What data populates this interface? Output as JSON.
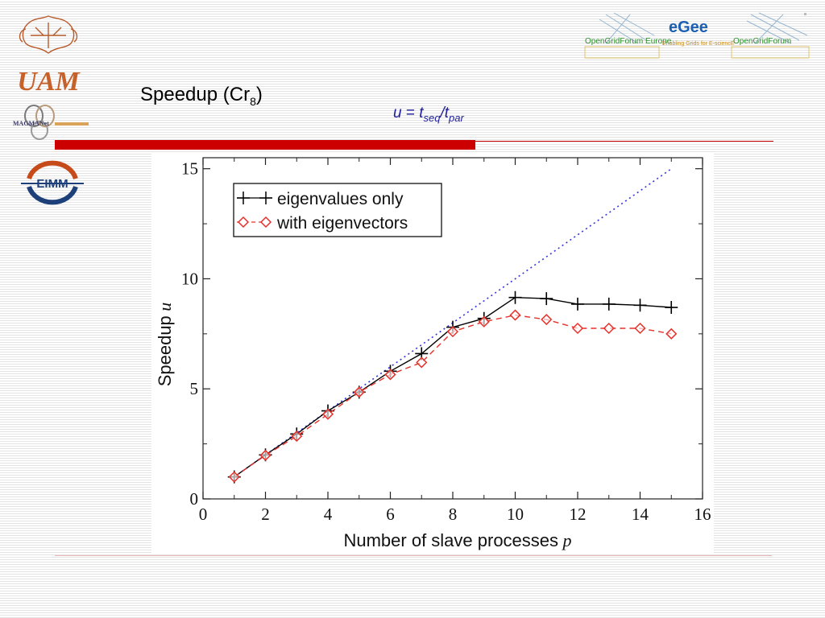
{
  "slide": {
    "title": "Speedup (Cr",
    "title_sub": "8",
    "title_end": ")",
    "formula": {
      "u": "u",
      "eq": " = ",
      "t1": "t",
      "t1_sub": "seq",
      "slash": "/",
      "t2": "t",
      "t2_sub": "par"
    }
  },
  "logos": {
    "uam": "UAM",
    "magmanet": "MAGMANet",
    "eimm": "EIMM",
    "ogf_europe": "OpenGridForum Europe",
    "egee": "eGee",
    "egee_tagline": "Enabling Grids for E-sciencE",
    "ogf": "OpenGridForum"
  },
  "colors": {
    "accent_red": "#cc0000",
    "series_black": "#000000",
    "series_red": "#e8302a",
    "ideal_blue": "#3333dd"
  },
  "chart_data": {
    "type": "line",
    "xlabel": "Number of slave processes",
    "xlabel_var": "p",
    "ylabel": "Speedup",
    "ylabel_var": "u",
    "xlim": [
      0,
      16
    ],
    "ylim": [
      0,
      15.5
    ],
    "xticks": [
      0,
      2,
      4,
      6,
      8,
      10,
      12,
      14,
      16
    ],
    "yticks": [
      0,
      5,
      10,
      15
    ],
    "grid": false,
    "legend_position": "top-left",
    "series": [
      {
        "name": "eigenvalues only",
        "marker": "plus",
        "line": "solid",
        "color": "#000000",
        "x": [
          1,
          2,
          3,
          4,
          5,
          6,
          7,
          8,
          9,
          10,
          11,
          12,
          13,
          14,
          15
        ],
        "y": [
          1.0,
          2.0,
          2.95,
          4.0,
          4.85,
          5.8,
          6.6,
          7.8,
          8.2,
          9.15,
          9.1,
          8.85,
          8.85,
          8.8,
          8.7
        ]
      },
      {
        "name": "with eigenvectors",
        "marker": "diamond",
        "line": "dashed",
        "color": "#e8302a",
        "x": [
          1,
          2,
          3,
          4,
          5,
          6,
          7,
          8,
          9,
          10,
          11,
          12,
          13,
          14,
          15
        ],
        "y": [
          1.0,
          1.98,
          2.85,
          3.85,
          4.85,
          5.65,
          6.2,
          7.6,
          8.05,
          8.35,
          8.15,
          7.75,
          7.75,
          7.75,
          7.5
        ]
      },
      {
        "marker": "none",
        "line": "dotted",
        "color": "#3333dd",
        "x": [
          1,
          15
        ],
        "y": [
          1,
          15
        ]
      }
    ]
  }
}
